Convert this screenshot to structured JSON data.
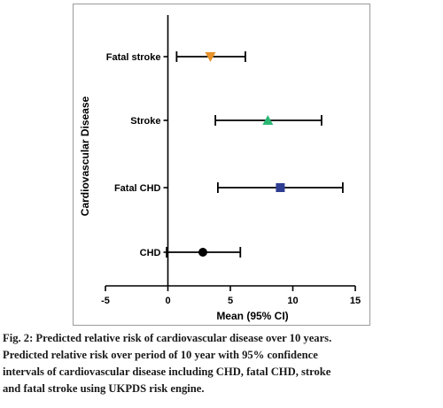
{
  "figure": {
    "caption_lines": [
      "Fig. 2: Predicted relative risk of cardiovascular disease over 10 years.",
      "Predicted relative risk over period of 10 year with 95% confidence",
      "intervals of cardiovascular disease including CHD, fatal CHD, stroke",
      "and fatal stroke using UKPDS risk engine."
    ]
  },
  "chart_data": {
    "type": "forest-plot (horizontal error bars)",
    "xlabel": "Mean (95% CI)",
    "ylabel": "Cardiovascular Disease",
    "xlim": [
      -5,
      15
    ],
    "x_ticks": [
      -5,
      0,
      5,
      10,
      15
    ],
    "reference_line_x": 0,
    "grid": false,
    "categories": [
      "Fatal stroke",
      "Stroke",
      "Fatal CHD",
      "CHD"
    ],
    "points": [
      {
        "label": "Fatal stroke",
        "mean": 3.4,
        "ci_low": 0.7,
        "ci_high": 6.2,
        "marker": "triangle-down",
        "color": "#E8922A"
      },
      {
        "label": "Stroke",
        "mean": 8.0,
        "ci_low": 3.8,
        "ci_high": 12.3,
        "marker": "triangle-up",
        "color": "#2BB673"
      },
      {
        "label": "Fatal CHD",
        "mean": 9.0,
        "ci_low": 4.0,
        "ci_high": 14.0,
        "marker": "square",
        "color": "#2E3D91"
      },
      {
        "label": "CHD",
        "mean": 2.8,
        "ci_low": -0.1,
        "ci_high": 5.8,
        "marker": "circle",
        "color": "#000000"
      }
    ]
  }
}
